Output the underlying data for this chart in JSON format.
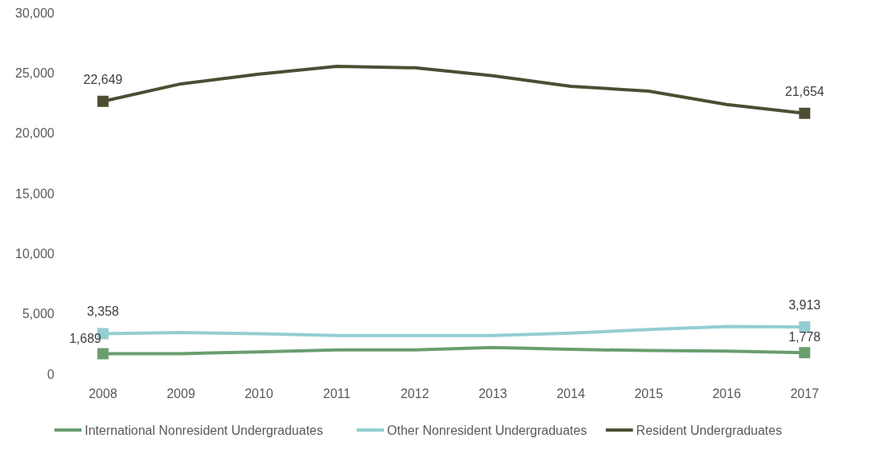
{
  "chart_data": {
    "type": "line",
    "categories": [
      "2008",
      "2009",
      "2010",
      "2011",
      "2012",
      "2013",
      "2014",
      "2015",
      "2016",
      "2017"
    ],
    "series": [
      {
        "name": "International Nonresident Undergraduates",
        "color": "#6a9e6f",
        "values": [
          1689,
          1700,
          1850,
          2000,
          2000,
          2200,
          2050,
          1950,
          1900,
          1778
        ],
        "value_labels": [
          "1,689",
          null,
          null,
          null,
          null,
          null,
          null,
          null,
          null,
          "1,778"
        ]
      },
      {
        "name": "Other Nonresident Undergraduates",
        "color": "#93cdd1",
        "values": [
          3358,
          3450,
          3350,
          3200,
          3200,
          3200,
          3400,
          3700,
          3950,
          3913
        ],
        "value_labels": [
          "3,358",
          null,
          null,
          null,
          null,
          null,
          null,
          null,
          null,
          "3,913"
        ]
      },
      {
        "name": "Resident Undergraduates",
        "color": "#4d4d33",
        "values": [
          22649,
          24100,
          24900,
          25560,
          25430,
          24770,
          23900,
          23500,
          22380,
          21654
        ],
        "value_labels": [
          "22,649",
          null,
          null,
          null,
          null,
          null,
          null,
          null,
          null,
          "21,654"
        ]
      }
    ],
    "ylim": [
      0,
      30000
    ],
    "yticks": [
      {
        "value": 0,
        "label": "0"
      },
      {
        "value": 5000,
        "label": "5,000"
      },
      {
        "value": 10000,
        "label": "10,000"
      },
      {
        "value": 15000,
        "label": "15,000"
      },
      {
        "value": 20000,
        "label": "20,000"
      },
      {
        "value": 25000,
        "label": "25,000"
      },
      {
        "value": 30000,
        "label": "30,000"
      }
    ],
    "grid": false,
    "legend": "bottom",
    "line_style": "solid"
  }
}
